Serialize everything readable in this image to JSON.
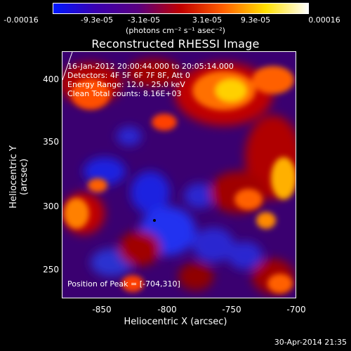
{
  "colorbar": {
    "ticks": [
      "-0.00016",
      "-9.3e-05",
      "-3.1e-05",
      "3.1e-05",
      "9.3e-05",
      "0.00016"
    ],
    "units": "(photons cm⁻² s⁻¹ asec⁻²)",
    "colors": [
      "#0018ff",
      "#3b00b0",
      "#5a0080",
      "#c00000",
      "#ff6000",
      "#ffe000",
      "#ffffff"
    ]
  },
  "title": "Reconstructed RHESSI Image",
  "info": {
    "time": "16-Jan-2012 20:00:44.000 to 20:05:14.000",
    "detectors": "Detectors: 4F 5F 6F 7F 8F, Att 0",
    "energy": "Energy Range: 12.0 - 25.0 keV",
    "clean": "Clean     Total counts: 8.16E+03",
    "peak": "Position of Peak = [-704,310]"
  },
  "axes": {
    "xlabel": "Heliocentric X (arcsec)",
    "ylabel": "Heliocentric Y (arcsec)",
    "xticks": [
      "-850",
      "-800",
      "-750",
      "-700"
    ],
    "yticks": [
      "400",
      "350",
      "300",
      "250"
    ]
  },
  "footer": "30-Apr-2014 21:35"
}
